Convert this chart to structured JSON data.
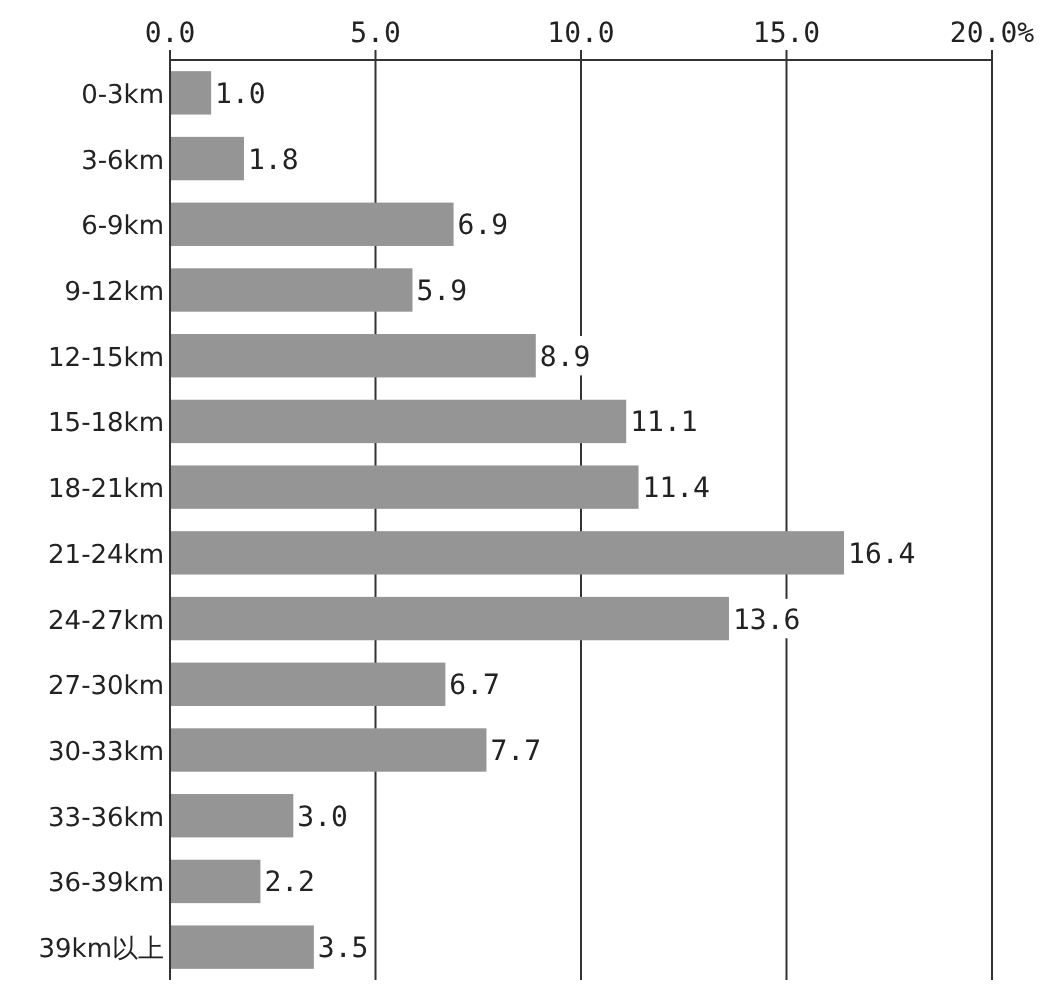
{
  "chart_data": {
    "type": "bar",
    "orientation": "horizontal",
    "categories": [
      "0-3km",
      "3-6km",
      "6-9km",
      "9-12km",
      "12-15km",
      "15-18km",
      "18-21km",
      "21-24km",
      "24-27km",
      "27-30km",
      "30-33km",
      "33-36km",
      "36-39km",
      "39km以上"
    ],
    "values": [
      1.0,
      1.8,
      6.9,
      5.9,
      8.9,
      11.1,
      11.4,
      16.4,
      13.6,
      6.7,
      7.7,
      3.0,
      2.2,
      3.5
    ],
    "value_labels": [
      "1.0",
      "1.8",
      "6.9",
      "5.9",
      "8.9",
      "11.1",
      "11.4",
      "16.4",
      "13.6",
      "6.7",
      "7.7",
      "3.0",
      "2.2",
      "3.5"
    ],
    "color": "#959595",
    "xlim": [
      0,
      20
    ],
    "xticks": [
      {
        "value": 0,
        "label": "0.0"
      },
      {
        "value": 5,
        "label": "5.0"
      },
      {
        "value": 10,
        "label": "10.0"
      },
      {
        "value": 15,
        "label": "15.0"
      },
      {
        "value": 20,
        "label": "20.0%"
      }
    ],
    "grid": "x"
  }
}
